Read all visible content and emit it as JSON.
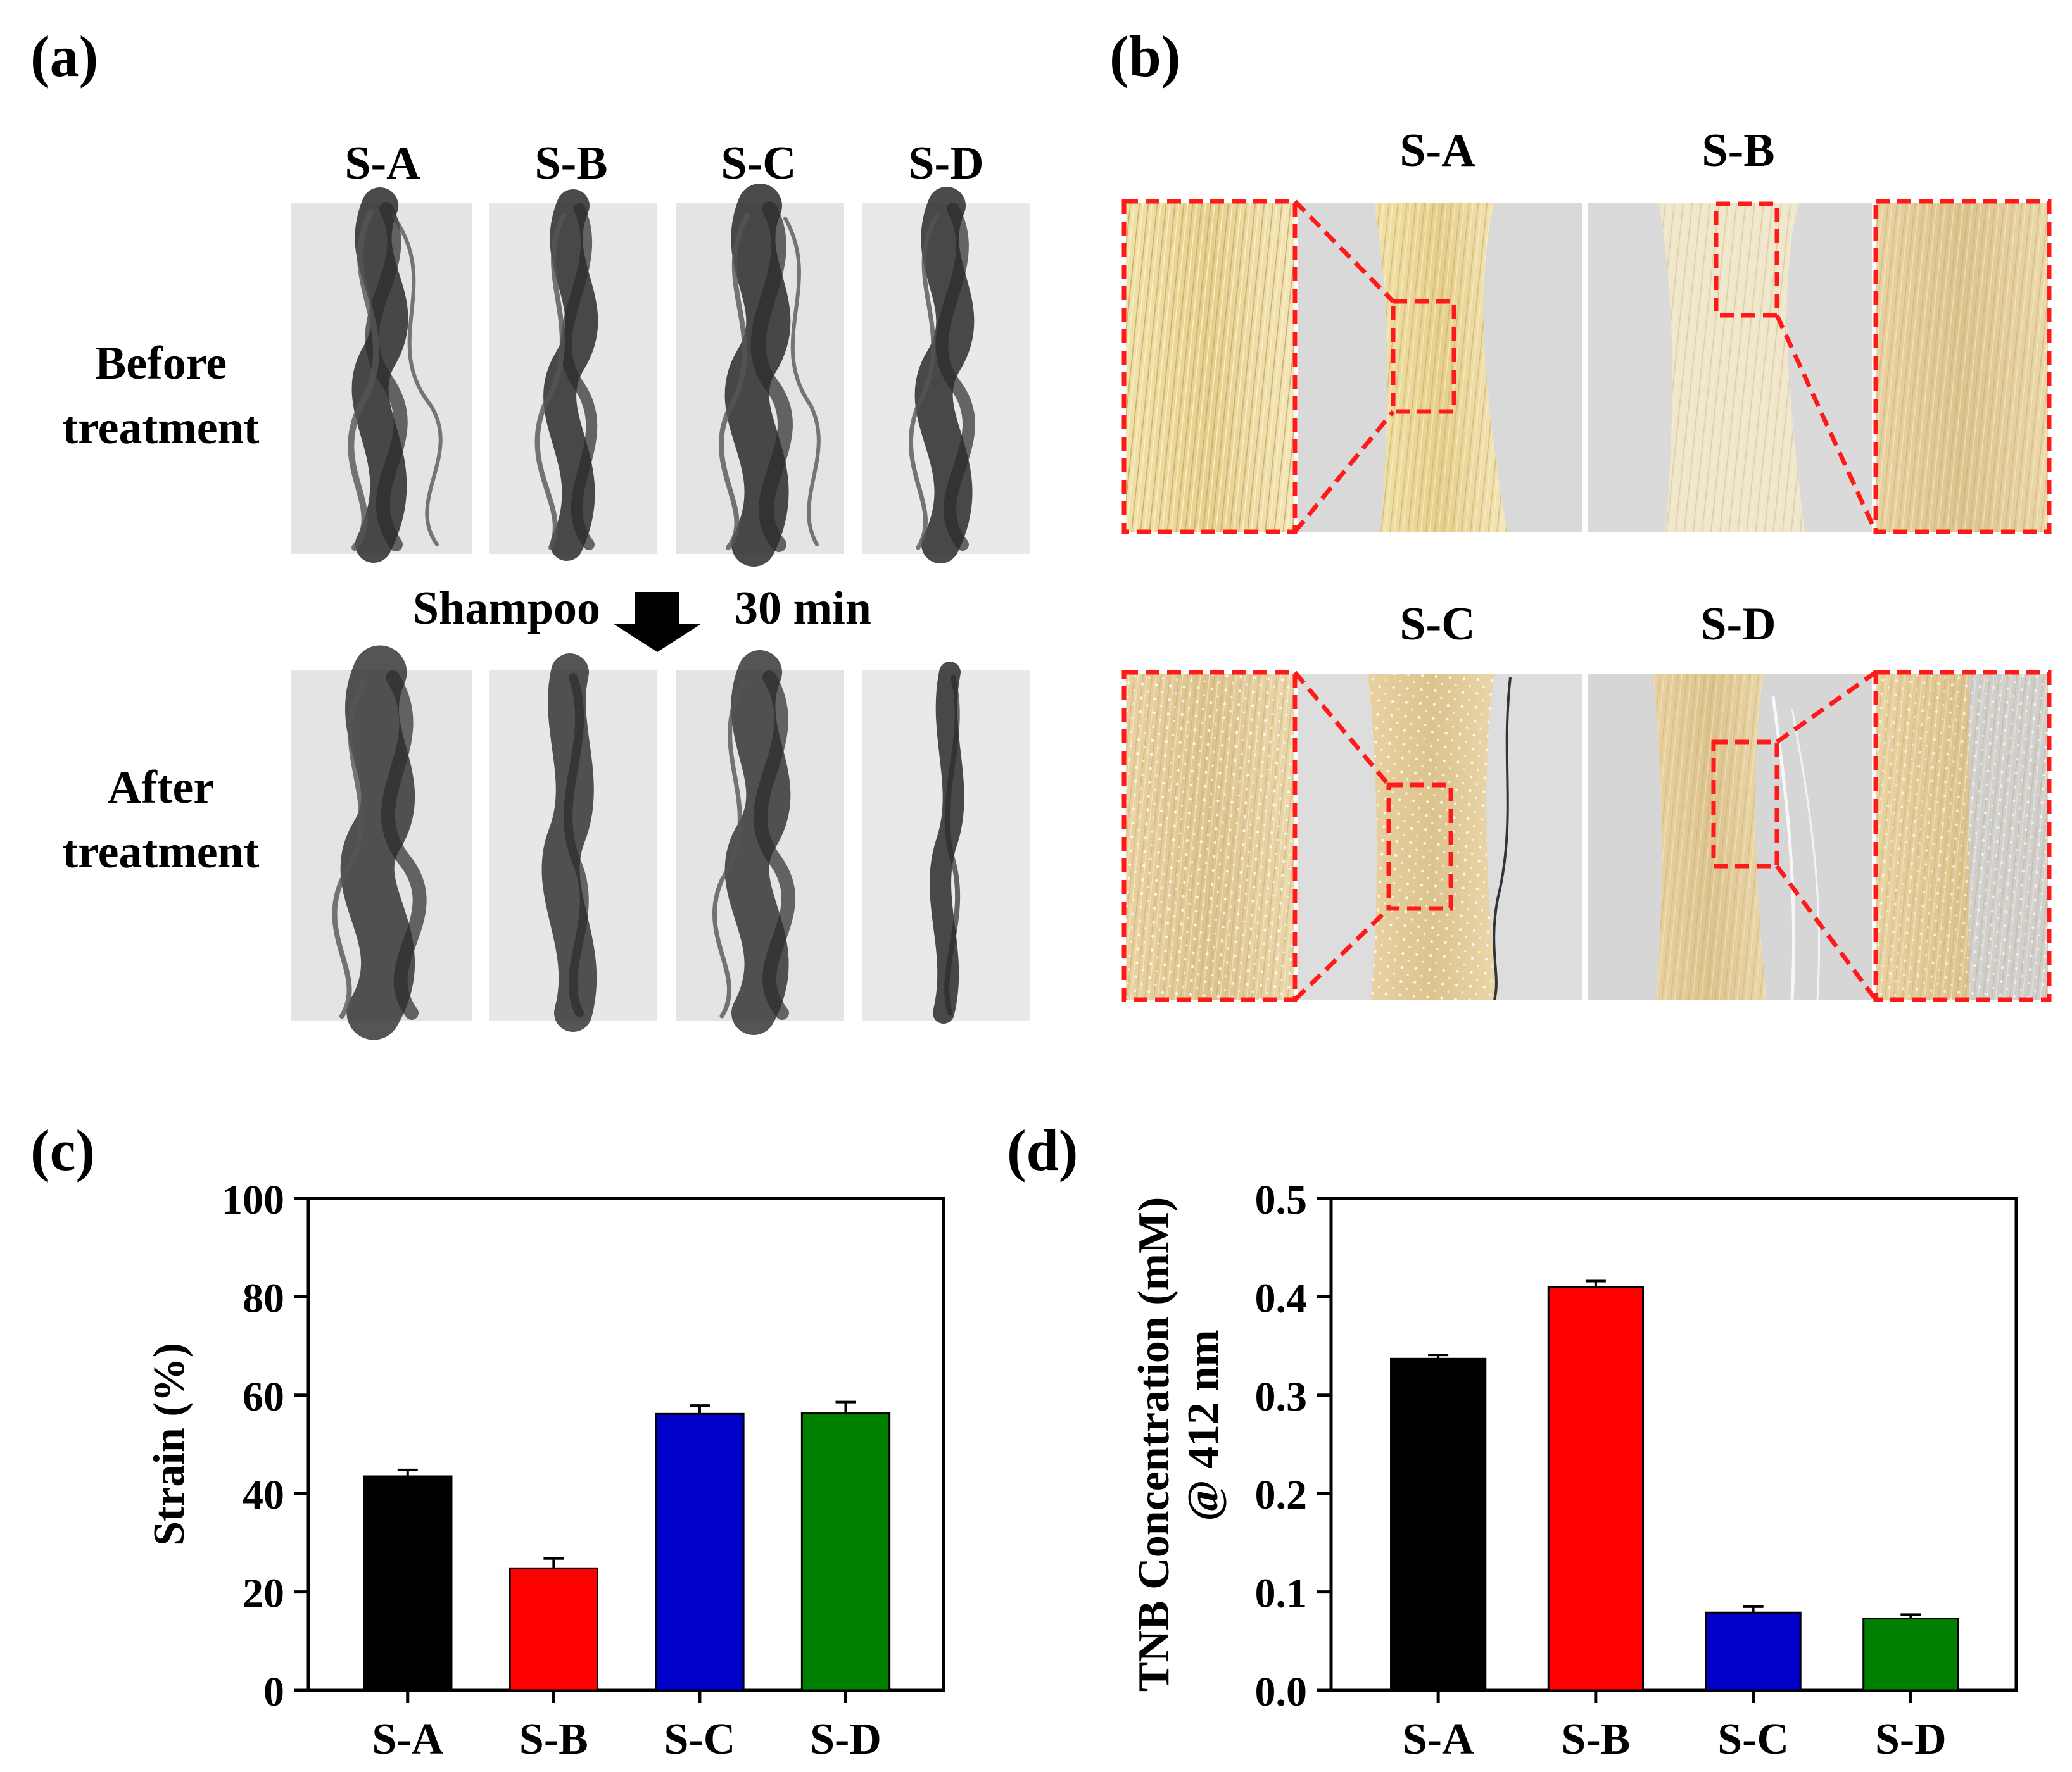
{
  "panels": {
    "a": {
      "label": "(a)",
      "samples": [
        "S-A",
        "S-B",
        "S-C",
        "S-D"
      ],
      "before_line1": "Before",
      "before_line2": "treatment",
      "after_line1": "After",
      "after_line2": "treatment",
      "step_left": "Shampoo",
      "step_right": "30 min"
    },
    "b": {
      "label": "(b)",
      "top_samples": [
        "S-A",
        "S-B"
      ],
      "bottom_samples": [
        "S-C",
        "S-D"
      ]
    },
    "c": {
      "label": "(c)"
    },
    "d": {
      "label": "(d)"
    }
  },
  "colors": {
    "zoom_box": "#ff1a1a",
    "hair_dark": "#2a2a2a",
    "hair_blond": "#e8d9a6",
    "photo_bg": "#e6e6e6"
  },
  "chart_data": [
    {
      "type": "bar",
      "panel": "c",
      "categories": [
        "S-A",
        "S-B",
        "S-C",
        "S-D"
      ],
      "values": [
        43.5,
        24.8,
        56.2,
        56.3
      ],
      "errors": [
        1.3,
        2.0,
        1.7,
        2.3
      ],
      "colors": [
        "#000000",
        "#ff0000",
        "#0000c8",
        "#008000"
      ],
      "ylabel": "Strain (%)",
      "ylim": [
        0,
        100
      ],
      "yticks": [
        "0",
        "20",
        "40",
        "60",
        "80",
        "100"
      ]
    },
    {
      "type": "bar",
      "panel": "d",
      "categories": [
        "S-A",
        "S-B",
        "S-C",
        "S-D"
      ],
      "values": [
        0.337,
        0.41,
        0.079,
        0.073
      ],
      "errors": [
        0.004,
        0.006,
        0.006,
        0.004
      ],
      "colors": [
        "#000000",
        "#ff0000",
        "#0000c8",
        "#008000"
      ],
      "ylabel": "TNB Concentration (mM)",
      "ylabel2": "@ 412 nm",
      "ylim": [
        0,
        0.5
      ],
      "yticks": [
        "0.0",
        "0.1",
        "0.2",
        "0.3",
        "0.4",
        "0.5"
      ]
    }
  ]
}
